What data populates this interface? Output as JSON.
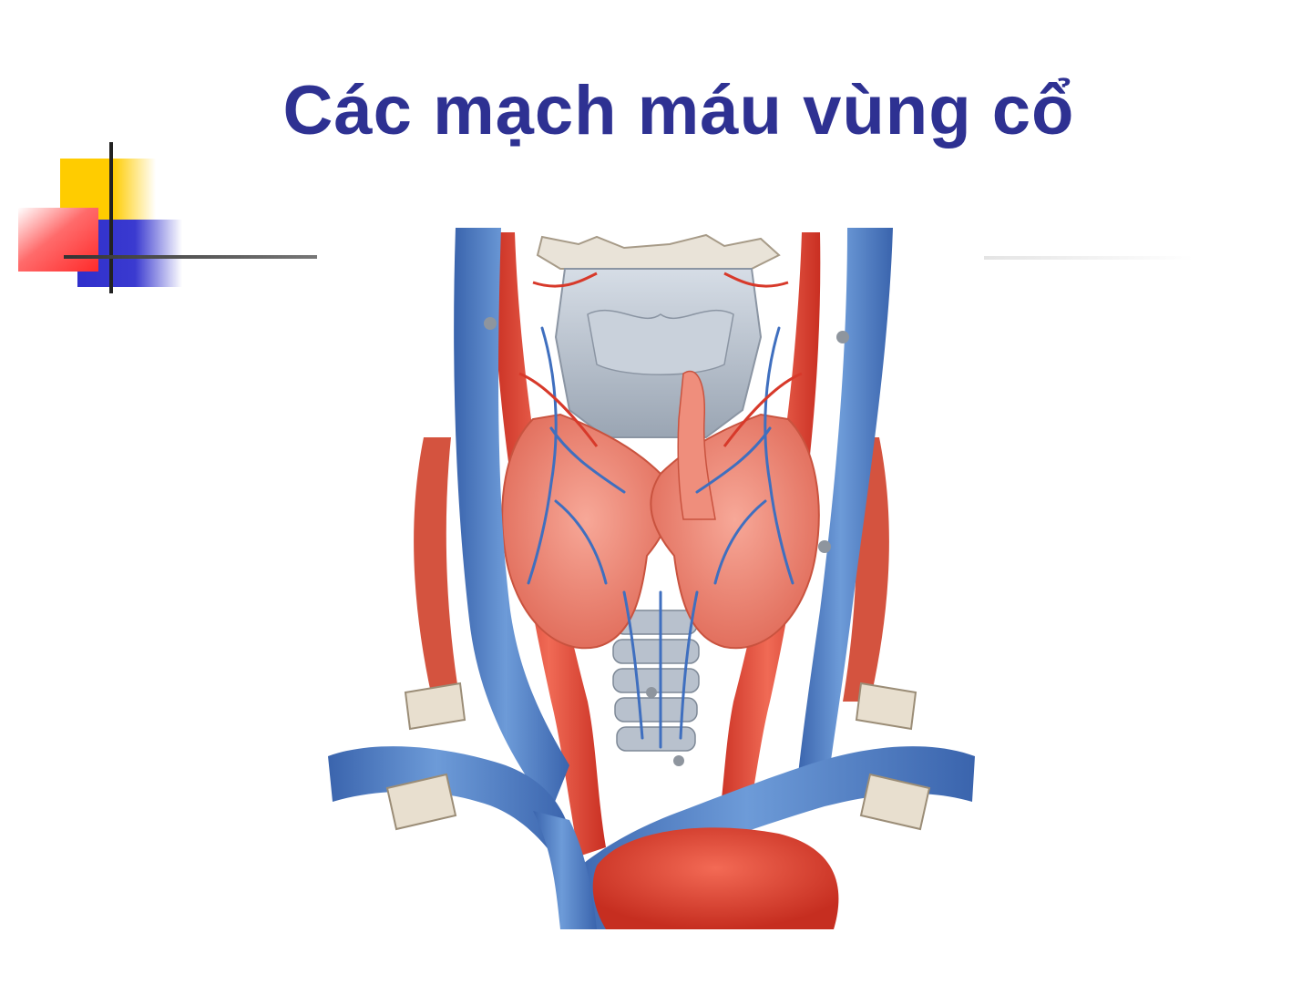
{
  "slide": {
    "title": "Các mạch máu vùng cổ"
  },
  "decoration": {
    "yellow_square_color": "#ffcc00",
    "red_square_color": "#ff3333",
    "blue_square_color": "#3333cc",
    "line_color": "#444444"
  },
  "figure": {
    "artery_color": "#e8412e",
    "vein_color": "#4a7cc4",
    "thyroid_color": "#f08a78",
    "cartilage_color": "#b9c2ce"
  }
}
